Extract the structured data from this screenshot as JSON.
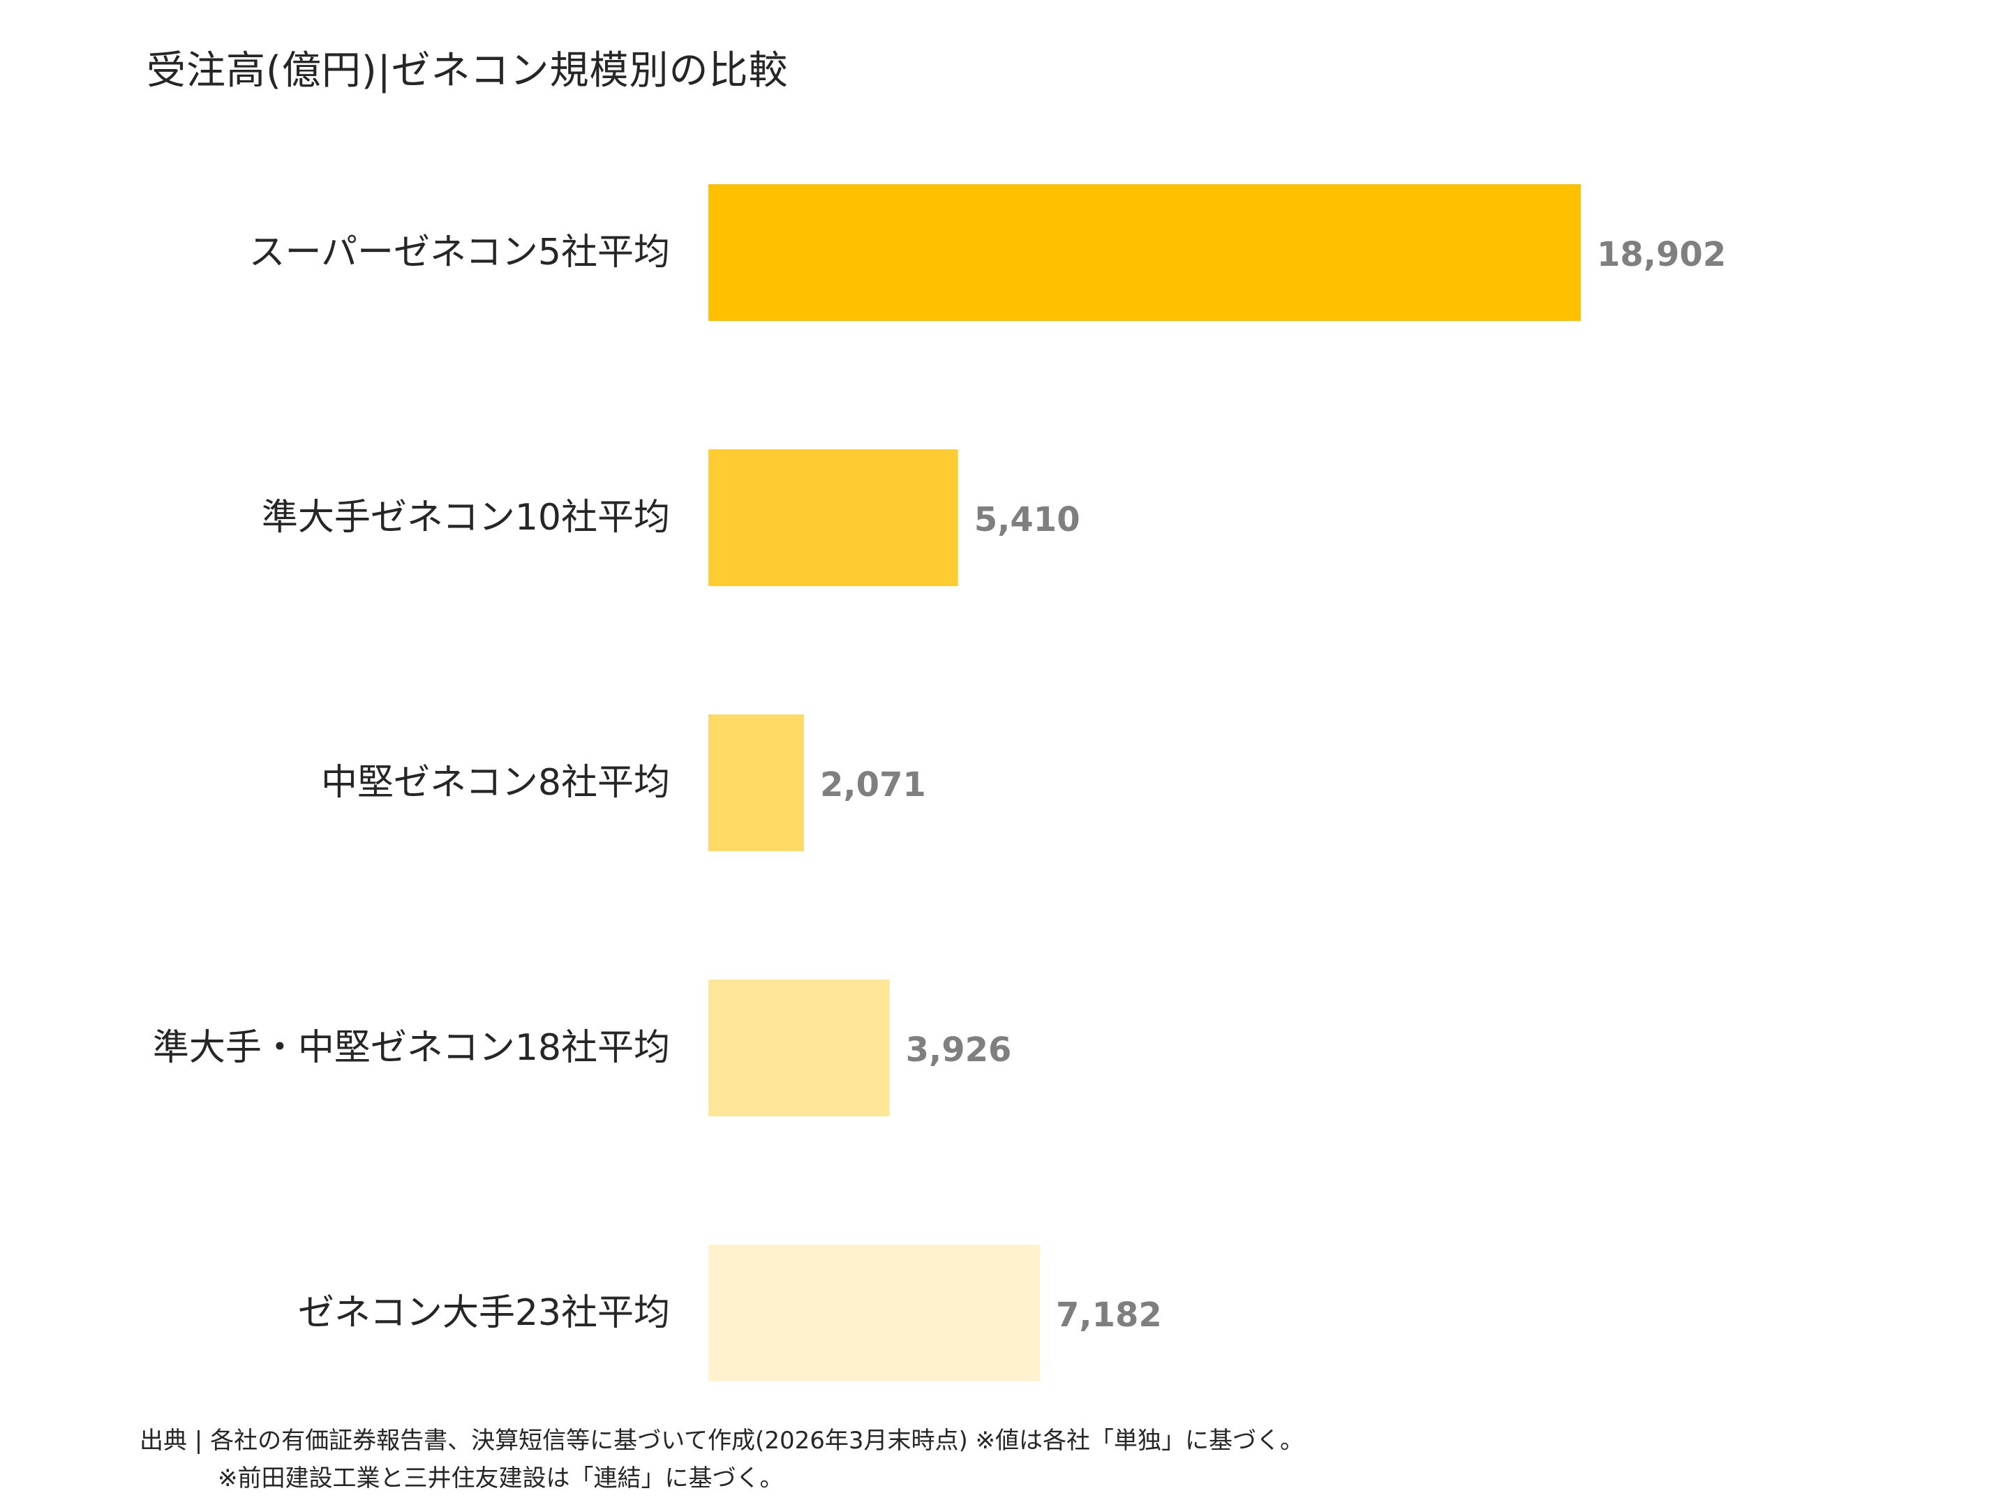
{
  "chart_data": {
    "type": "bar",
    "orientation": "horizontal",
    "title": "受注高(億円)|ゼネコン規模別の比較",
    "categories": [
      "スーパーゼネコン5社平均",
      "準大手ゼネコン10社平均",
      "中堅ゼネコン8社平均",
      "準大手・中堅ゼネコン18社平均",
      "ゼネコン大手23社平均"
    ],
    "values": [
      18902,
      5410,
      2071,
      3926,
      7182
    ],
    "value_labels": [
      "18,902",
      "5,410",
      "2,071",
      "3,926",
      "7,182"
    ],
    "colors": [
      "#FFC000",
      "#FFCD33",
      "#FFD966",
      "#FFE699",
      "#FFF2CC"
    ],
    "xlim": [
      0,
      25000
    ],
    "grid": false,
    "legend": "none"
  },
  "source": {
    "line1": "出典 | 各社の有価証券報告書、決算短信等に基づいて作成(2026年3月末時点) ※値は各社「単独」に基づく。",
    "line2": "※前田建設工業と三井住友建設は「連結」に基づく。"
  },
  "colors": {
    "label_text": "#262626",
    "value_text": "#7f7f7f"
  }
}
